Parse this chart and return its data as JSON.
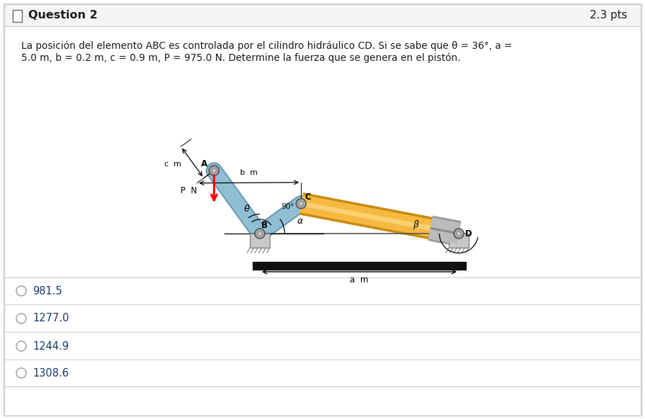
{
  "title": "Question 2",
  "pts": "2.3 pts",
  "problem_text_line1": "La posición del elemento ABC es controlada por el cilindro hidráulico CD. Si se sabe que θ = 36°, a =",
  "problem_text_line2": "5.0 m, b = 0.2 m, c = 0.9 m, P = 975.0 N. Determine la fuerza que se genera en el pistón.",
  "choices": [
    "981.5",
    "1277.0",
    "1244.9",
    "1308.6"
  ],
  "bg_color": "#ffffff",
  "border_color": "#d0d0d0",
  "header_color": "#f5f5f5",
  "text_color": "#1a1a1a",
  "choice_color": "#333333",
  "arm_color": "#90bfd4",
  "arm_dark": "#6a9ab0",
  "cyl_color": "#f5b942",
  "cyl_highlight": "#fad070",
  "cyl_dark": "#c88a10",
  "gray_metal": "#aaaaaa",
  "gray_dark": "#777777",
  "theta_deg": 36
}
